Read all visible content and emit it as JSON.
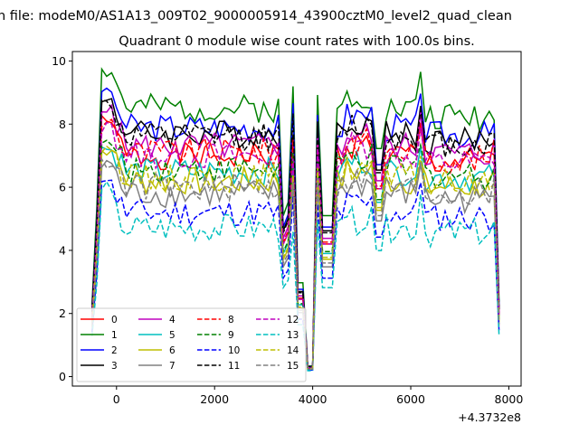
{
  "figure": {
    "suptitle": "n file: modeM0/AS1A13_009T02_9000005914_43900cztM0_level2_quad_clean",
    "title": "Quadrant 0 module wise count rates with 100.0s bins.",
    "offset_label": "+4.3732e8"
  },
  "chart_data": {
    "type": "line",
    "title": "Quadrant 0 module wise count rates with 100.0s bins.",
    "xlabel": "",
    "ylabel": "",
    "xlim": [
      -900,
      8250
    ],
    "ylim": [
      -0.3,
      10.3
    ],
    "x_offset": "+4.3732e8",
    "xticks": [
      0,
      2000,
      4000,
      6000,
      8000
    ],
    "xtick_labels": [
      "0",
      "2000",
      "4000",
      "6000",
      "8000"
    ],
    "yticks": [
      0,
      2,
      4,
      6,
      8,
      10
    ],
    "ytick_labels": [
      "0",
      "2",
      "4",
      "6",
      "8",
      "10"
    ],
    "grid": false,
    "legend_position": "lower-left",
    "legend_columns": 4,
    "x_segments": [
      {
        "start": -500,
        "end": 3900,
        "step": 100
      },
      {
        "start": 4000,
        "end": 7800,
        "step": 100
      }
    ],
    "series": [
      {
        "name": "0",
        "color": "#ff0000",
        "dash": "solid",
        "level": 7.0,
        "peak_left": 8.4,
        "peak_right": 8.3
      },
      {
        "name": "1",
        "color": "#008000",
        "dash": "solid",
        "level": 8.5,
        "peak_left": 9.8,
        "peak_right": 9.8
      },
      {
        "name": "2",
        "color": "#0000ff",
        "dash": "solid",
        "level": 7.9,
        "peak_left": 9.4,
        "peak_right": 9.0
      },
      {
        "name": "3",
        "color": "#000000",
        "dash": "solid",
        "level": 7.7,
        "peak_left": 9.0,
        "peak_right": 8.8
      },
      {
        "name": "4",
        "color": "#bf00bf",
        "dash": "solid",
        "level": 7.3,
        "peak_left": 8.6,
        "peak_right": 8.5
      },
      {
        "name": "5",
        "color": "#00bfbf",
        "dash": "solid",
        "level": 6.5,
        "peak_left": 7.4,
        "peak_right": 7.3
      },
      {
        "name": "6",
        "color": "#bfbf00",
        "dash": "solid",
        "level": 6.2,
        "peak_left": 7.2,
        "peak_right": 7.0
      },
      {
        "name": "7",
        "color": "#808080",
        "dash": "solid",
        "level": 5.8,
        "peak_left": 7.0,
        "peak_right": 6.8
      },
      {
        "name": "8",
        "color": "#ff0000",
        "dash": "dashed",
        "level": 7.1,
        "peak_left": 8.2,
        "peak_right": 8.1
      },
      {
        "name": "9",
        "color": "#008000",
        "dash": "dashed",
        "level": 6.6,
        "peak_left": 7.6,
        "peak_right": 7.5
      },
      {
        "name": "10",
        "color": "#0000ff",
        "dash": "dashed",
        "level": 5.2,
        "peak_left": 6.3,
        "peak_right": 6.2
      },
      {
        "name": "11",
        "color": "#000000",
        "dash": "dashed",
        "level": 7.6,
        "peak_left": 8.8,
        "peak_right": 8.7
      },
      {
        "name": "12",
        "color": "#bf00bf",
        "dash": "dashed",
        "level": 7.0,
        "peak_left": 8.1,
        "peak_right": 8.0
      },
      {
        "name": "13",
        "color": "#00bfbf",
        "dash": "dashed",
        "level": 4.7,
        "peak_left": 6.2,
        "peak_right": 5.8
      },
      {
        "name": "14",
        "color": "#bfbf00",
        "dash": "dashed",
        "level": 6.3,
        "peak_left": 7.3,
        "peak_right": 7.2
      },
      {
        "name": "15",
        "color": "#808080",
        "dash": "dashed",
        "level": 6.0,
        "peak_left": 7.0,
        "peak_right": 6.9
      }
    ]
  }
}
